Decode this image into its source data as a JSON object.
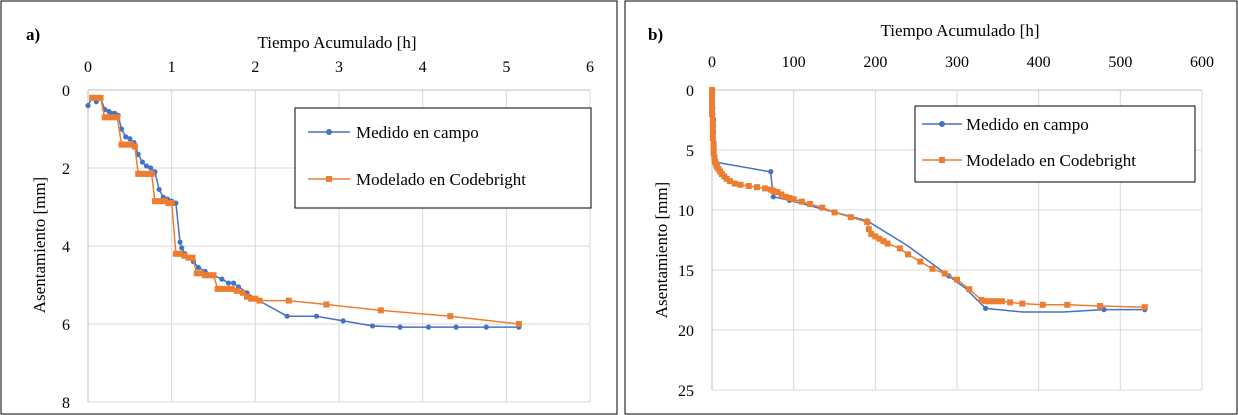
{
  "colors": {
    "measured": "#4472C4",
    "modeled": "#ED7D31",
    "grid": "#d9d9d9",
    "border": "#000000"
  },
  "chart_data": [
    {
      "type": "scatter",
      "panel_label": "a)",
      "title": "",
      "xlabel": "Tiempo Acumulado [h]",
      "ylabel": "Asentamiento [mm]",
      "xlim": [
        0,
        6
      ],
      "ylim": [
        0,
        8
      ],
      "y_inverted": true,
      "x_axis_position": "top",
      "x_ticks": [
        "0",
        "1",
        "2",
        "3",
        "4",
        "5",
        "6"
      ],
      "y_ticks": [
        "0",
        "2",
        "4",
        "6",
        "8"
      ],
      "grid": true,
      "legend_position": "top-right",
      "series": [
        {
          "name": "Medido en campo",
          "color_key": "measured",
          "marker": "circle",
          "x": [
            0,
            0.05,
            0.1,
            0.15,
            0.2,
            0.25,
            0.28,
            0.32,
            0.36,
            0.4,
            0.45,
            0.5,
            0.55,
            0.6,
            0.65,
            0.7,
            0.75,
            0.8,
            0.85,
            0.9,
            0.95,
            1.0,
            1.05,
            1.1,
            1.12,
            1.16,
            1.2,
            1.26,
            1.32,
            1.4,
            1.5,
            1.6,
            1.68,
            1.74,
            1.8,
            1.9,
            2.0,
            2.38,
            2.73,
            3.05,
            3.4,
            3.73,
            4.07,
            4.4,
            4.76,
            5.15
          ],
          "y": [
            0.4,
            0.2,
            0.3,
            0.2,
            0.5,
            0.55,
            0.6,
            0.6,
            0.65,
            1.0,
            1.2,
            1.25,
            1.35,
            1.65,
            1.85,
            1.95,
            2.0,
            2.1,
            2.55,
            2.75,
            2.8,
            2.85,
            2.9,
            3.9,
            4.05,
            4.2,
            4.3,
            4.4,
            4.55,
            4.65,
            4.75,
            4.85,
            4.95,
            4.95,
            5.05,
            5.2,
            5.35,
            5.8,
            5.8,
            5.92,
            6.05,
            6.08,
            6.08,
            6.08,
            6.08,
            6.08
          ]
        },
        {
          "name": "Modelado en Codebright",
          "color_key": "modeled",
          "marker": "square",
          "x": [
            0.05,
            0.1,
            0.15,
            0.2,
            0.25,
            0.3,
            0.35,
            0.4,
            0.43,
            0.47,
            0.52,
            0.56,
            0.6,
            0.64,
            0.68,
            0.72,
            0.76,
            0.8,
            0.85,
            0.88,
            0.92,
            0.96,
            1.0,
            1.05,
            1.1,
            1.15,
            1.2,
            1.25,
            1.3,
            1.35,
            1.4,
            1.45,
            1.5,
            1.55,
            1.6,
            1.66,
            1.72,
            1.78,
            1.85,
            1.9,
            1.95,
            2.0,
            2.05,
            2.4,
            2.85,
            3.5,
            4.33,
            5.15
          ],
          "y": [
            0.2,
            0.2,
            0.2,
            0.7,
            0.7,
            0.7,
            0.7,
            1.4,
            1.4,
            1.4,
            1.4,
            1.45,
            2.15,
            2.15,
            2.15,
            2.15,
            2.15,
            2.85,
            2.85,
            2.85,
            2.85,
            2.9,
            2.9,
            4.2,
            4.2,
            4.25,
            4.3,
            4.3,
            4.7,
            4.7,
            4.75,
            4.75,
            4.75,
            5.1,
            5.1,
            5.1,
            5.1,
            5.15,
            5.2,
            5.3,
            5.35,
            5.35,
            5.4,
            5.4,
            5.5,
            5.65,
            5.8,
            6.0
          ]
        }
      ]
    },
    {
      "type": "scatter",
      "panel_label": "b)",
      "title": "",
      "xlabel": "Tiempo Acumulado [h]",
      "ylabel": "Asentamiento [mm]",
      "xlim": [
        0,
        600
      ],
      "ylim": [
        0,
        25
      ],
      "y_inverted": true,
      "x_axis_position": "top",
      "x_ticks": [
        "0",
        "100",
        "200",
        "300",
        "400",
        "500",
        "600"
      ],
      "y_ticks": [
        "0",
        "5",
        "10",
        "15",
        "20",
        "25"
      ],
      "grid": true,
      "legend_position": "top-right",
      "series": [
        {
          "name": "Medido en campo",
          "color_key": "measured",
          "marker": "circle",
          "x": [
            0,
            0,
            0,
            1,
            1,
            2,
            2,
            2,
            3,
            72,
            75,
            95,
            190,
            290,
            335,
            480,
            530
          ],
          "y": [
            0,
            0.5,
            1,
            1.5,
            2,
            2.5,
            3,
            3.5,
            6,
            6.8,
            8.9,
            9.2,
            10.9,
            15.5,
            18.2,
            18.3,
            18.3
          ],
          "curve": [
            [
              0,
              0
            ],
            [
              1,
              3
            ],
            [
              3,
              6
            ],
            [
              70,
              6.8
            ],
            [
              72,
              7
            ],
            [
              75,
              8.9
            ],
            [
              95,
              9.2
            ],
            [
              140,
              10.0
            ],
            [
              190,
              10.9
            ],
            [
              240,
              13.0
            ],
            [
              290,
              15.5
            ],
            [
              310,
              16.5
            ],
            [
              335,
              18.2
            ],
            [
              380,
              18.5
            ],
            [
              430,
              18.5
            ],
            [
              480,
              18.3
            ],
            [
              530,
              18.3
            ]
          ]
        },
        {
          "name": "Modelado en Codebright",
          "color_key": "modeled",
          "marker": "square",
          "x": [
            0,
            0,
            0,
            0,
            0,
            1,
            1,
            1,
            1,
            2,
            2,
            2,
            3,
            3,
            4,
            5,
            6,
            8,
            10,
            12,
            15,
            18,
            22,
            28,
            35,
            45,
            55,
            65,
            72,
            75,
            80,
            85,
            90,
            95,
            100,
            110,
            120,
            135,
            150,
            170,
            190,
            192,
            195,
            200,
            205,
            210,
            215,
            230,
            240,
            255,
            270,
            285,
            300,
            315,
            330,
            335,
            340,
            345,
            350,
            355,
            365,
            380,
            405,
            435,
            475,
            530
          ],
          "y": [
            0,
            0.5,
            1,
            1.5,
            2,
            2.5,
            3,
            3.5,
            4,
            4.5,
            5,
            5.3,
            5.6,
            5.8,
            6.0,
            6.2,
            6.4,
            6.6,
            6.8,
            7.0,
            7.2,
            7.4,
            7.6,
            7.8,
            7.9,
            8.0,
            8.1,
            8.2,
            8.3,
            8.4,
            8.5,
            8.7,
            8.9,
            9.0,
            9.1,
            9.3,
            9.5,
            9.8,
            10.2,
            10.6,
            11.0,
            11.6,
            12.0,
            12.2,
            12.4,
            12.6,
            12.8,
            13.2,
            13.7,
            14.3,
            14.9,
            15.3,
            15.8,
            16.6,
            17.5,
            17.6,
            17.6,
            17.6,
            17.6,
            17.6,
            17.7,
            17.8,
            17.9,
            17.9,
            18.0,
            18.1
          ]
        }
      ]
    }
  ]
}
